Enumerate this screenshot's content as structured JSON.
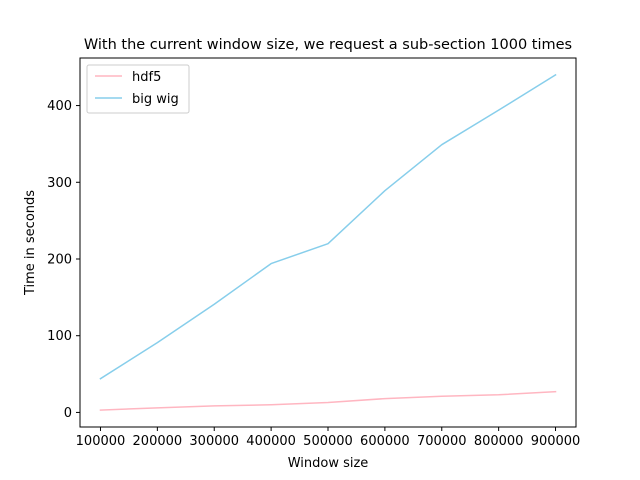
{
  "chart_data": {
    "type": "line",
    "title": "With the current window size, we request a sub-section 1000 times",
    "xlabel": "Window size",
    "ylabel": "Time in seconds",
    "x": [
      100000,
      200000,
      300000,
      400000,
      500000,
      600000,
      700000,
      800000,
      900000
    ],
    "x_ticks": [
      100000,
      200000,
      300000,
      400000,
      500000,
      600000,
      700000,
      800000,
      900000
    ],
    "y_ticks": [
      0,
      100,
      200,
      300,
      400
    ],
    "xlim": [
      64000,
      936000
    ],
    "ylim": [
      -19,
      462
    ],
    "grid": false,
    "legend_position": "upper-left",
    "series": [
      {
        "name": "hdf5",
        "color": "#ffb6c1",
        "values": [
          3,
          6,
          8.5,
          10,
          13,
          18,
          21,
          23,
          27
        ]
      },
      {
        "name": "big wig",
        "color": "#87ceeb",
        "values": [
          44,
          91,
          141,
          194,
          220,
          289,
          349,
          394,
          440
        ]
      }
    ]
  }
}
